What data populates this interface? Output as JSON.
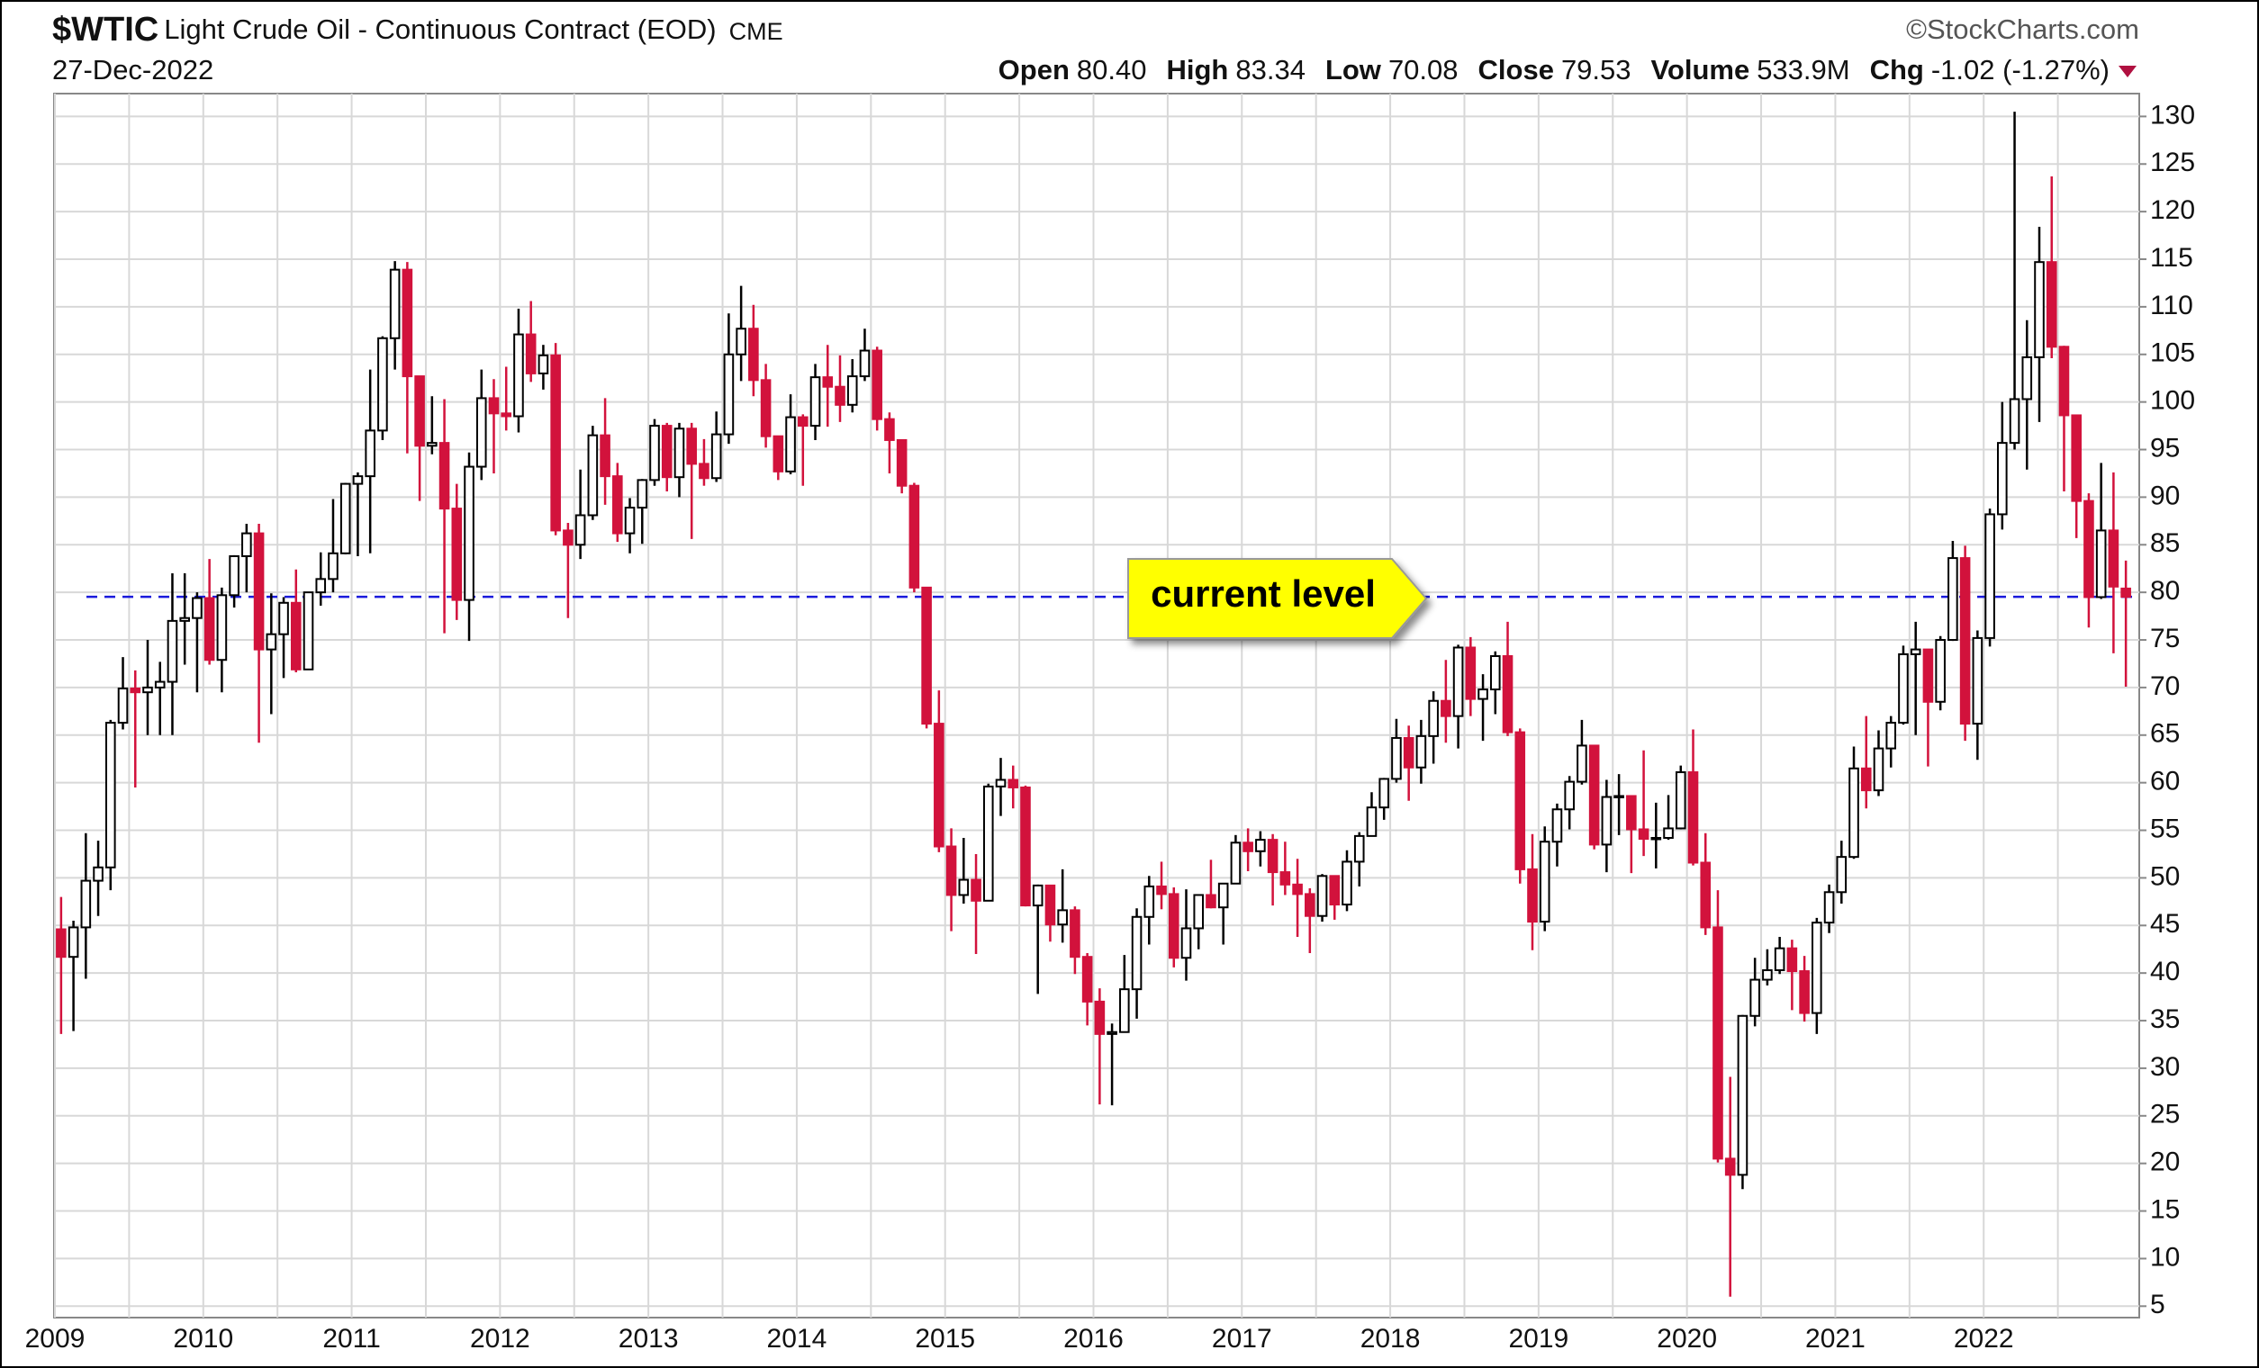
{
  "chart_data": {
    "type": "candlestick",
    "symbol": "$WTIC",
    "title": "Light Crude Oil - Continuous Contract (EOD)",
    "exchange": "CME",
    "source": "©StockCharts.com",
    "date": "27-Dec-2022",
    "stats": [
      {
        "name": "Open",
        "value": 80.4,
        "label": "80.40"
      },
      {
        "name": "High",
        "value": 83.34,
        "label": "83.34"
      },
      {
        "name": "Low",
        "value": 70.08,
        "label": "70.08"
      },
      {
        "name": "Close",
        "value": 79.53,
        "label": "79.53"
      },
      {
        "name": "Volume",
        "value": 533900000,
        "label": "533.9M"
      },
      {
        "name": "Chg",
        "value": -1.02,
        "label": "-1.02 (-1.27%)"
      }
    ],
    "annotation": "current level",
    "up_color": "#000000",
    "down_color": "#d2123c",
    "reference_color": "#1a1adc",
    "grid": true,
    "ylim": [
      3.8,
      132.4
    ],
    "yticks": [
      5,
      10,
      15,
      20,
      25,
      30,
      35,
      40,
      45,
      50,
      55,
      60,
      65,
      70,
      75,
      80,
      85,
      90,
      95,
      100,
      105,
      110,
      115,
      120,
      125,
      130
    ],
    "categories": [
      "2009",
      null,
      null,
      null,
      null,
      null,
      null,
      null,
      null,
      null,
      null,
      null,
      "2010",
      null,
      null,
      null,
      null,
      null,
      null,
      null,
      null,
      null,
      null,
      null,
      "2011",
      null,
      null,
      null,
      null,
      null,
      null,
      null,
      null,
      null,
      null,
      null,
      "2012",
      null,
      null,
      null,
      null,
      null,
      null,
      null,
      null,
      null,
      null,
      null,
      "2013",
      null,
      null,
      null,
      null,
      null,
      null,
      null,
      null,
      null,
      null,
      null,
      "2014",
      null,
      null,
      null,
      null,
      null,
      null,
      null,
      null,
      null,
      null,
      null,
      "2015",
      null,
      null,
      null,
      null,
      null,
      null,
      null,
      null,
      null,
      null,
      null,
      "2016",
      null,
      null,
      null,
      null,
      null,
      null,
      null,
      null,
      null,
      null,
      null,
      "2017",
      null,
      null,
      null,
      null,
      null,
      null,
      null,
      null,
      null,
      null,
      null,
      "2018",
      null,
      null,
      null,
      null,
      null,
      null,
      null,
      null,
      null,
      null,
      null,
      "2019",
      null,
      null,
      null,
      null,
      null,
      null,
      null,
      null,
      null,
      null,
      null,
      "2020",
      null,
      null,
      null,
      null,
      null,
      null,
      null,
      null,
      null,
      null,
      null,
      "2021",
      null,
      null,
      null,
      null,
      null,
      null,
      null,
      null,
      null,
      null,
      null,
      "2022",
      null,
      null,
      null,
      null,
      null,
      null,
      null,
      null,
      null,
      null,
      null
    ],
    "open": [
      44.6,
      41.7,
      44.8,
      49.7,
      51.1,
      66.3,
      69.9,
      69.5,
      70.0,
      70.6,
      77.0,
      77.3,
      79.4,
      72.9,
      79.7,
      83.8,
      86.2,
      74.0,
      75.6,
      78.9,
      71.9,
      80.0,
      81.4,
      84.1,
      91.4,
      92.2,
      97.0,
      106.7,
      113.9,
      102.7,
      95.4,
      95.7,
      88.8,
      79.2,
      93.2,
      100.4,
      98.8,
      98.5,
      107.1,
      103.0,
      104.9,
      86.5,
      85.0,
      88.1,
      96.5,
      92.2,
      86.2,
      88.9,
      91.8,
      97.5,
      92.1,
      97.2,
      93.5,
      92.0,
      96.6,
      105.0,
      107.7,
      102.3,
      96.4,
      92.7,
      98.4,
      97.5,
      102.6,
      101.6,
      99.7,
      102.7,
      105.4,
      98.2,
      96.0,
      91.2,
      80.5,
      66.2,
      53.3,
      48.2,
      49.8,
      47.6,
      59.6,
      60.3,
      59.5,
      47.1,
      49.2,
      45.1,
      46.6,
      41.7,
      37.0,
      33.6,
      33.8,
      38.3,
      45.9,
      49.1,
      48.3,
      41.6,
      44.7,
      48.2,
      46.9,
      49.4,
      53.7,
      52.8,
      54.0,
      50.6,
      49.3,
      48.3,
      46.0,
      50.2,
      47.2,
      51.7,
      54.4,
      57.4,
      60.4,
      64.7,
      61.6,
      64.9,
      68.6,
      67.0,
      74.2,
      68.8,
      69.8,
      73.3,
      65.3,
      50.9,
      45.4,
      53.8,
      57.2,
      60.1,
      63.9,
      53.5,
      58.5,
      58.6,
      55.1,
      54.1,
      54.2,
      55.2,
      61.1,
      51.6,
      44.8,
      20.5,
      18.8,
      35.5,
      39.3,
      40.3,
      42.6,
      40.2,
      35.8,
      45.3,
      48.5,
      52.2,
      61.5,
      59.2,
      63.6,
      66.3,
      73.5,
      74.0,
      68.5,
      75.0,
      83.6,
      66.2,
      75.2,
      88.2,
      95.7,
      100.3,
      104.7,
      114.7,
      105.8,
      98.6,
      89.6,
      79.5,
      86.5,
      80.4
    ],
    "high": [
      48.0,
      45.5,
      54.7,
      53.9,
      66.6,
      73.2,
      71.8,
      75.0,
      72.7,
      82.0,
      82.0,
      80.0,
      83.5,
      80.5,
      83.9,
      87.2,
      87.2,
      79.9,
      79.5,
      82.4,
      80.0,
      84.2,
      89.8,
      91.5,
      92.6,
      103.4,
      106.9,
      114.8,
      114.7,
      102.6,
      100.6,
      100.3,
      91.4,
      94.7,
      103.4,
      102.4,
      103.7,
      109.8,
      110.6,
      106.0,
      106.2,
      87.3,
      92.9,
      97.5,
      100.4,
      93.6,
      89.9,
      91.9,
      98.2,
      97.8,
      97.8,
      97.8,
      96.1,
      99.0,
      109.3,
      112.2,
      110.2,
      104.0,
      95.2,
      100.8,
      98.7,
      104.0,
      106.0,
      104.9,
      104.5,
      107.7,
      105.8,
      98.9,
      95.6,
      91.5,
      80.2,
      69.7,
      55.2,
      54.2,
      52.5,
      59.9,
      62.6,
      61.8,
      59.7,
      49.3,
      49.2,
      50.9,
      47.0,
      42.1,
      38.4,
      34.7,
      41.9,
      46.8,
      50.2,
      51.7,
      49.0,
      48.8,
      48.2,
      51.9,
      49.2,
      54.5,
      55.2,
      54.9,
      54.6,
      53.8,
      52.0,
      48.9,
      50.4,
      50.2,
      52.9,
      54.8,
      59.0,
      60.5,
      66.7,
      66.0,
      66.6,
      69.6,
      72.9,
      74.5,
      75.3,
      71.4,
      73.8,
      76.9,
      65.7,
      54.6,
      55.4,
      57.8,
      60.7,
      66.6,
      63.8,
      60.3,
      60.9,
      57.5,
      63.4,
      57.9,
      58.7,
      61.8,
      65.6,
      54.7,
      48.7,
      29.1,
      35.6,
      41.6,
      42.5,
      43.8,
      43.5,
      41.8,
      45.8,
      49.3,
      53.9,
      63.8,
      67.0,
      65.5,
      67.0,
      74.4,
      76.9,
      74.0,
      75.4,
      85.4,
      84.9,
      76.0,
      88.8,
      100.0,
      130.5,
      108.6,
      118.4,
      123.7,
      105.9,
      97.7,
      90.4,
      93.6,
      92.6,
      83.34
    ],
    "low": [
      33.6,
      33.9,
      39.4,
      46.0,
      48.7,
      65.6,
      59.5,
      65.0,
      65.0,
      65.0,
      72.4,
      69.5,
      72.4,
      69.5,
      78.4,
      80.0,
      64.2,
      67.2,
      71.0,
      71.6,
      72.6,
      78.6,
      80.0,
      84.0,
      83.8,
      84.1,
      96.0,
      103.4,
      94.6,
      89.6,
      94.5,
      75.7,
      77.1,
      74.9,
      91.8,
      92.5,
      97.0,
      96.8,
      102.1,
      101.3,
      86.0,
      77.3,
      83.5,
      87.6,
      89.2,
      85.3,
      84.1,
      85.1,
      91.2,
      90.6,
      90.0,
      85.6,
      91.2,
      91.6,
      95.6,
      102.2,
      100.6,
      95.2,
      91.8,
      92.4,
      91.2,
      96.0,
      97.4,
      97.9,
      98.9,
      102.2,
      97.0,
      92.5,
      90.4,
      80.0,
      65.7,
      52.7,
      44.4,
      47.3,
      42.0,
      47.6,
      56.5,
      57.3,
      47.0,
      37.8,
      43.3,
      43.2,
      39.9,
      34.5,
      26.2,
      26.1,
      33.8,
      35.2,
      43.0,
      46.7,
      40.6,
      39.2,
      42.5,
      46.8,
      43.0,
      49.9,
      50.7,
      51.2,
      47.1,
      48.2,
      43.8,
      42.1,
      45.4,
      45.6,
      46.5,
      49.1,
      54.5,
      56.1,
      60.0,
      58.1,
      59.9,
      62.0,
      64.2,
      63.6,
      67.0,
      64.4,
      67.2,
      64.9,
      49.4,
      42.4,
      44.4,
      51.2,
      55.1,
      59.8,
      53.0,
      50.6,
      54.5,
      50.5,
      52.3,
      51.0,
      54.0,
      55.1,
      51.3,
      44.0,
      20.1,
      6.0,
      17.3,
      34.4,
      38.7,
      39.9,
      36.1,
      34.9,
      33.6,
      44.2,
      47.3,
      52.0,
      57.3,
      58.6,
      61.6,
      66.1,
      65.0,
      61.7,
      67.6,
      74.9,
      64.4,
      62.4,
      74.3,
      86.6,
      95.0,
      92.9,
      97.9,
      104.6,
      90.6,
      85.7,
      76.3,
      79.3,
      73.6,
      70.08
    ],
    "close": [
      41.7,
      44.8,
      49.7,
      51.1,
      66.3,
      69.9,
      69.5,
      70.0,
      70.6,
      77.0,
      77.3,
      79.4,
      72.9,
      79.7,
      83.8,
      86.2,
      74.0,
      75.6,
      78.9,
      71.9,
      80.0,
      81.4,
      84.1,
      91.4,
      92.2,
      97.0,
      106.7,
      113.9,
      102.7,
      95.4,
      95.7,
      88.8,
      79.2,
      93.2,
      100.4,
      98.8,
      98.5,
      107.1,
      103.0,
      104.9,
      86.5,
      85.0,
      88.1,
      96.5,
      92.2,
      86.2,
      88.9,
      91.8,
      97.5,
      92.1,
      97.2,
      93.5,
      92.0,
      96.6,
      105.0,
      107.7,
      102.3,
      96.4,
      92.7,
      98.4,
      97.5,
      102.6,
      101.6,
      99.7,
      102.7,
      105.4,
      98.2,
      96.0,
      91.2,
      80.5,
      66.2,
      53.3,
      48.2,
      49.8,
      47.6,
      59.6,
      60.3,
      59.5,
      47.1,
      49.2,
      45.1,
      46.6,
      41.7,
      37.0,
      33.6,
      33.8,
      38.3,
      45.9,
      49.1,
      48.3,
      41.6,
      44.7,
      48.2,
      46.9,
      49.4,
      53.7,
      52.8,
      54.0,
      50.6,
      49.3,
      48.3,
      46.0,
      50.2,
      47.2,
      51.7,
      54.4,
      57.4,
      60.4,
      64.7,
      61.6,
      64.9,
      68.6,
      67.0,
      74.2,
      68.8,
      69.8,
      73.3,
      65.3,
      50.9,
      45.4,
      53.8,
      57.2,
      60.1,
      63.9,
      53.5,
      58.5,
      58.6,
      55.1,
      54.1,
      54.2,
      55.2,
      61.1,
      51.6,
      44.8,
      20.5,
      18.8,
      35.5,
      39.3,
      40.3,
      42.6,
      40.2,
      35.8,
      45.3,
      48.5,
      52.2,
      61.5,
      59.2,
      63.6,
      66.3,
      73.5,
      74.0,
      68.5,
      75.0,
      83.6,
      66.2,
      75.2,
      88.2,
      95.7,
      100.3,
      104.7,
      114.7,
      105.8,
      98.6,
      89.6,
      79.5,
      86.5,
      80.6,
      79.53
    ]
  }
}
